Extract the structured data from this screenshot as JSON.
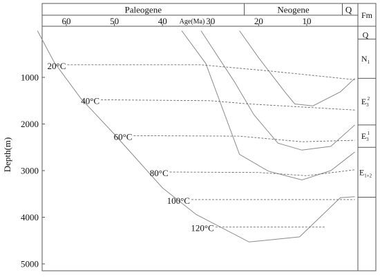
{
  "chart_data": {
    "type": "line",
    "title": "",
    "periods": [
      {
        "name": "Paleogene",
        "from_ma": 66,
        "to_ma": 23
      },
      {
        "name": "Neogene",
        "from_ma": 23,
        "to_ma": 2.6
      },
      {
        "name": "Q",
        "from_ma": 2.6,
        "to_ma": 0
      }
    ],
    "x_axis": {
      "label": "Age(Ma)",
      "ticks": [
        60,
        50,
        40,
        30,
        20,
        10
      ],
      "range": [
        66,
        0
      ],
      "direction": "reversed"
    },
    "y_axis": {
      "label": "Depth(m)",
      "ticks": [
        1000,
        2000,
        3000,
        4000,
        5000
      ],
      "range": [
        0,
        5300
      ],
      "direction": "downward"
    },
    "formation_column": {
      "header": "Fm",
      "units": [
        {
          "label": "Q",
          "top_m": 0,
          "bottom_m": 180
        },
        {
          "label": "N",
          "sub": "1",
          "sup": "",
          "top_m": 180,
          "bottom_m": 1020
        },
        {
          "label": "E",
          "sub": "3",
          "sup": "2",
          "top_m": 1020,
          "bottom_m": 2020
        },
        {
          "label": "E",
          "sub": "3",
          "sup": "1",
          "top_m": 2020,
          "bottom_m": 2500
        },
        {
          "label": "E",
          "sub": "1+2",
          "sup": "",
          "top_m": 2500,
          "bottom_m": 3570
        }
      ]
    },
    "burial_curves": [
      {
        "points": [
          [
            66,
            0
          ],
          [
            62.5,
            680
          ],
          [
            57,
            1450
          ],
          [
            50,
            2220
          ],
          [
            40,
            3370
          ],
          [
            33,
            3940
          ],
          [
            22,
            4530
          ],
          [
            11.5,
            4420
          ],
          [
            3,
            3580
          ],
          [
            0,
            3560
          ]
        ]
      },
      {
        "points": [
          [
            36,
            0
          ],
          [
            31,
            700
          ],
          [
            24,
            2650
          ],
          [
            18,
            3010
          ],
          [
            11,
            3200
          ],
          [
            5,
            3000
          ],
          [
            0,
            2600
          ]
        ]
      },
      {
        "points": [
          [
            32,
            0
          ],
          [
            25,
            1100
          ],
          [
            21,
            1800
          ],
          [
            16,
            2410
          ],
          [
            11,
            2560
          ],
          [
            5,
            2480
          ],
          [
            0,
            2020
          ]
        ]
      },
      {
        "points": [
          [
            24,
            0
          ],
          [
            20,
            580
          ],
          [
            14.5,
            1320
          ],
          [
            12.5,
            1570
          ],
          [
            8.7,
            1610
          ],
          [
            3,
            1310
          ],
          [
            0,
            1020
          ]
        ]
      }
    ],
    "isotherms": [
      {
        "label": "20°C",
        "points": [
          [
            59.8,
            730
          ],
          [
            32,
            730
          ],
          [
            18,
            860
          ],
          [
            0,
            1050
          ]
        ]
      },
      {
        "label": "40°C",
        "points": [
          [
            52.8,
            1480
          ],
          [
            30,
            1500
          ],
          [
            22,
            1570
          ],
          [
            0,
            1700
          ]
        ]
      },
      {
        "label": "60°C",
        "points": [
          [
            46,
            2250
          ],
          [
            24,
            2260
          ],
          [
            11,
            2380
          ],
          [
            0,
            2350
          ]
        ]
      },
      {
        "label": "80°C",
        "points": [
          [
            38.5,
            3030
          ],
          [
            20,
            3040
          ],
          [
            10,
            3110
          ],
          [
            0,
            2980
          ]
        ]
      },
      {
        "label": "100°C",
        "points": [
          [
            34,
            3620
          ],
          [
            0,
            3620
          ]
        ]
      },
      {
        "label": "120°C",
        "points": [
          [
            29,
            4210
          ],
          [
            6,
            4210
          ]
        ]
      }
    ]
  }
}
